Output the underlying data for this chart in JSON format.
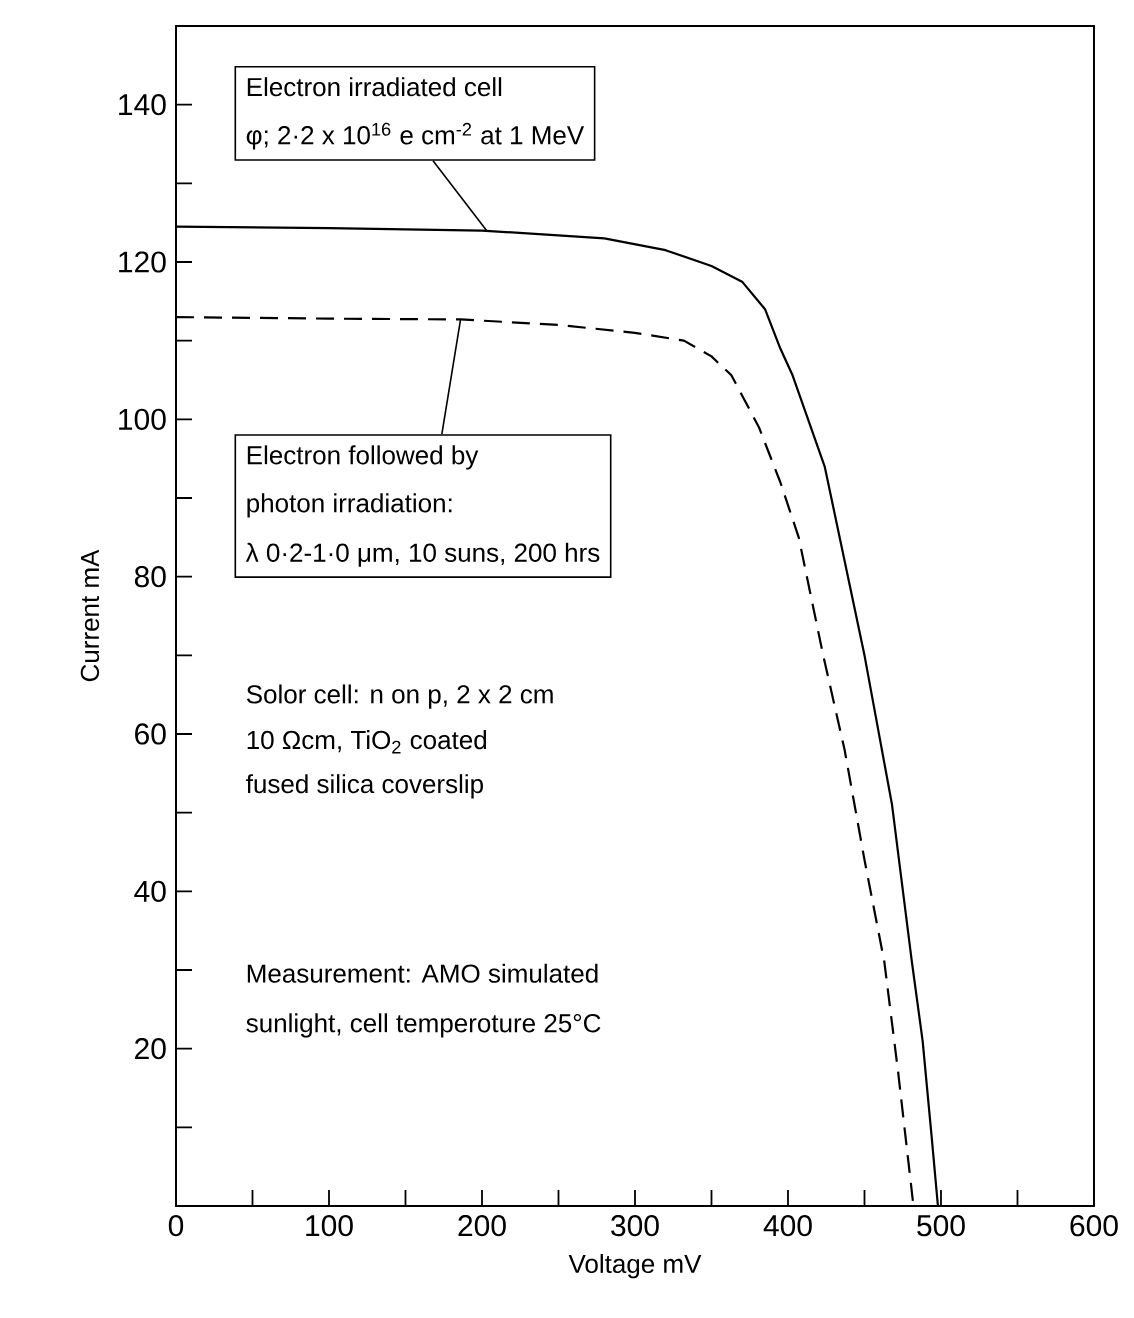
{
  "chart_data": {
    "type": "line",
    "xlabel": "Voltage mV",
    "ylabel": "Current mA",
    "xlim": [
      0,
      600
    ],
    "ylim": [
      0,
      150
    ],
    "xticks": [
      0,
      {
        "value": 50,
        "label": null
      },
      100,
      {
        "value": 150,
        "label": null
      },
      200,
      {
        "value": 250,
        "label": null
      },
      300,
      {
        "value": 350,
        "label": null
      },
      400,
      {
        "value": 450,
        "label": null
      },
      500,
      {
        "value": 550,
        "label": null
      },
      600
    ],
    "yticks": [
      {
        "value": 10,
        "label": null
      },
      20,
      {
        "value": 30,
        "label": null
      },
      40,
      {
        "value": 50,
        "label": null
      },
      60,
      {
        "value": 70,
        "label": null
      },
      80,
      {
        "value": 90,
        "label": null
      },
      100,
      {
        "value": 110,
        "label": null
      },
      120,
      {
        "value": 130,
        "label": null
      },
      140
    ],
    "marker": "none",
    "series": [
      {
        "color": "#000000",
        "line_style": "solid",
        "x": [
          0,
          100,
          200,
          280,
          320,
          350,
          370,
          385,
          395,
          403,
          424,
          450,
          468,
          481,
          488,
          494,
          498
        ],
        "values": [
          124.5,
          124.3,
          124,
          123,
          121.5,
          119.5,
          117.5,
          114,
          109,
          105.6,
          94,
          70,
          51,
          31,
          21,
          8.6,
          0
        ]
      },
      {
        "color": "#000000",
        "line_style": "dashed",
        "x": [
          0,
          100,
          186,
          250,
          300,
          332,
          350,
          363,
          381,
          395,
          407,
          423,
          437,
          450,
          463,
          472,
          482
        ],
        "values": [
          113,
          112.8,
          112.7,
          112,
          111,
          110,
          108,
          105.6,
          99,
          92,
          85,
          70,
          58,
          44,
          31,
          17,
          0
        ]
      }
    ],
    "annotations": [
      "Electron irradiated cell",
      {
        "text": "φ; 2·2 x 10$^{16}$ e cm$^{-2}$ at 1 MeV",
        "x": 203,
        "y": 124
      },
      {
        "text": "Electron followed by",
        "x": 186,
        "y": 112.7
      },
      "photon irradiation:",
      "λ 0·2-1·0 μm, 10 suns, 200 hrs",
      "Solor cell: n on p, 2 x 2 cm",
      "10 Ωcm, TiO$_{2}$ coated",
      "fused silica coverslip",
      "Measurement: AMO simulated",
      "sunlight, cell temperoture 25°C"
    ]
  }
}
